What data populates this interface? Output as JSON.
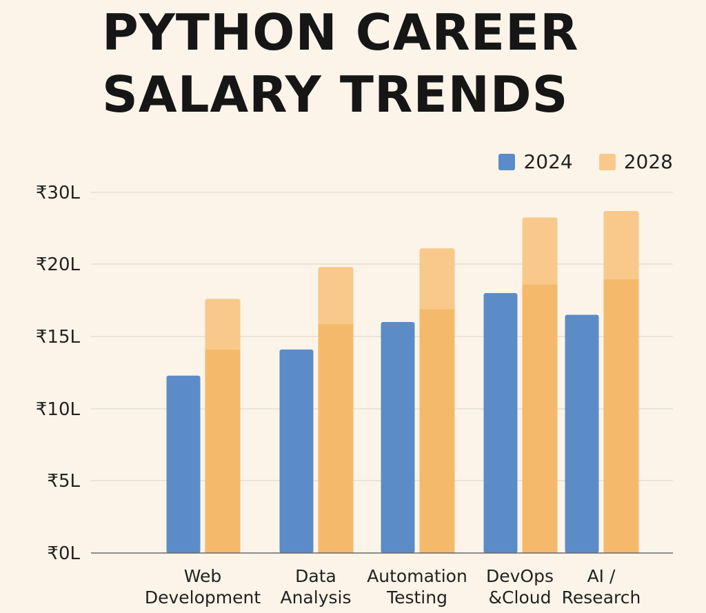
{
  "chart_data": {
    "type": "bar",
    "title_lines": [
      "PYTHON CAREER",
      "SALARY TRENDS"
    ],
    "categories": [
      [
        "Web",
        "Development"
      ],
      [
        "Data",
        "Analysis"
      ],
      [
        "Automation",
        "Testing"
      ],
      [
        "DevOps",
        "&Cloud"
      ],
      [
        "AI /",
        "Research"
      ]
    ],
    "series": [
      {
        "name": "2024",
        "color": "#5b8cc8",
        "values": [
          12.3,
          14.1,
          16.0,
          18.0,
          16.5
        ]
      },
      {
        "name": "2028",
        "color": "#f5b96c",
        "highlight_color": "#f8c98a",
        "values": [
          17.6,
          19.8,
          22.2,
          26.5,
          27.4
        ]
      }
    ],
    "y_ticks": [
      {
        "value": 0,
        "label": "₹0L"
      },
      {
        "value": 5,
        "label": "₹5L"
      },
      {
        "value": 10,
        "label": "₹10L"
      },
      {
        "value": 15,
        "label": "₹15L"
      },
      {
        "value": 20,
        "label": "₹20L"
      },
      {
        "value": 30,
        "label": "₹30L"
      }
    ],
    "ylim": [
      0,
      30
    ],
    "legend_position": "top-right",
    "grid": true,
    "xlabel": "",
    "ylabel": ""
  }
}
